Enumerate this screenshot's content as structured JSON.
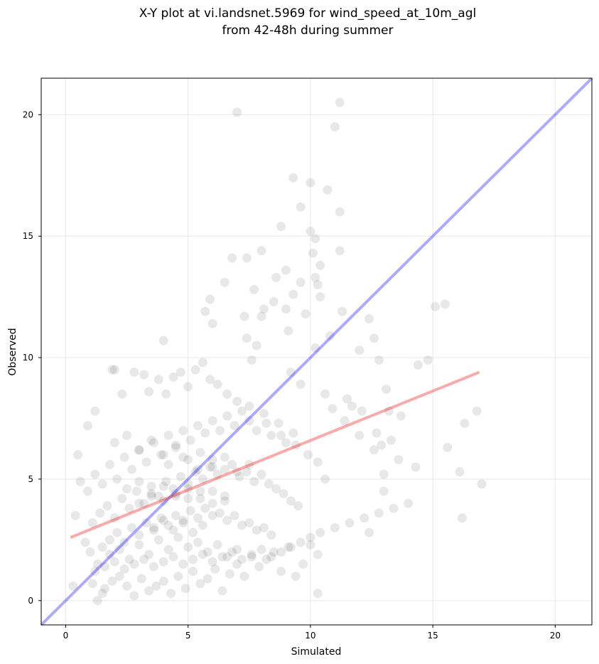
{
  "chart_data": {
    "type": "scatter",
    "title_lines": [
      "X-Y plot at vi.landsnet.5969 for wind_speed_at_10m_agl",
      "from 42-48h during summer"
    ],
    "xlabel": "Simulated",
    "ylabel": "Observed",
    "xlim": [
      -1,
      21.5
    ],
    "ylim": [
      -1,
      21.5
    ],
    "x_ticks": [
      "0",
      "5",
      "10",
      "15",
      "20"
    ],
    "y_ticks": [
      "0",
      "5",
      "10",
      "15",
      "20"
    ],
    "grid": true,
    "colors": {
      "points": "#000000",
      "identity_line": "#0000ff",
      "regression_line": "#ee0000"
    },
    "identity_line": {
      "x": [
        -1,
        21.5
      ],
      "y": [
        -1,
        21.5
      ]
    },
    "regression_line": {
      "x": [
        0.2,
        16.9
      ],
      "y": [
        2.6,
        9.4
      ]
    },
    "points": {
      "x": [
        7.0,
        11.2,
        11.0,
        9.6,
        10.0,
        10.7,
        9.3,
        11.2,
        8.8,
        10.0,
        11.2,
        10.1,
        10.2,
        8.0,
        7.4,
        6.8,
        10.4,
        9.0,
        10.3,
        9.6,
        10.4,
        7.7,
        8.5,
        15.5,
        15.1,
        12.4,
        9.1,
        9.8,
        10.2,
        11.3,
        10.8,
        12.0,
        12.6,
        4.0,
        12.8,
        14.8,
        14.4,
        1.9,
        16.8,
        16.3,
        15.6,
        16.1,
        16.2,
        17.0,
        14.3,
        12.4,
        13.0,
        10.3,
        13.2,
        13.7,
        13.6,
        12.7,
        11.5,
        12.1,
        13.1,
        12.9,
        8.0,
        9.3,
        9.0,
        6.5,
        5.9,
        5.7,
        6.0,
        7.3,
        7.4,
        7.8,
        8.6,
        10.2,
        8.1,
        7.6,
        9.6,
        9.2,
        10.6,
        10.9,
        11.4,
        11.7,
        12.0,
        12.6,
        13.0,
        13.3,
        0.3,
        0.4,
        0.8,
        1.1,
        1.3,
        1.5,
        0.5,
        0.9,
        1.2,
        2.0,
        2.3,
        2.8,
        3.2,
        3.4,
        3.8,
        4.1,
        4.4,
        4.7,
        5.0,
        5.3,
        5.6,
        5.9,
        6.2,
        6.6,
        7.0,
        7.5,
        8.2,
        8.8,
        9.4,
        9.9,
        10.3,
        10.6,
        1.0,
        1.3,
        1.6,
        1.9,
        2.2,
        2.5,
        2.8,
        3.1,
        3.4,
        3.7,
        4.0,
        4.3,
        4.6,
        4.9,
        5.2,
        5.5,
        5.8,
        6.1,
        6.4,
        6.7,
        7.0,
        7.3,
        7.6,
        7.9,
        8.2,
        8.5,
        8.8,
        9.1,
        9.4,
        9.7,
        10.0,
        10.3,
        0.6,
        0.9,
        1.2,
        1.5,
        1.8,
        2.1,
        2.4,
        2.7,
        3.0,
        3.3,
        3.6,
        3.9,
        4.2,
        4.5,
        4.8,
        5.1,
        5.4,
        5.7,
        6.0,
        6.3,
        6.6,
        6.9,
        7.2,
        7.5,
        7.8,
        8.1,
        8.4,
        8.7,
        9.0,
        9.3,
        1.1,
        1.4,
        1.7,
        2.0,
        2.3,
        2.6,
        2.9,
        3.2,
        3.5,
        3.8,
        4.1,
        4.4,
        4.7,
        5.0,
        5.3,
        5.6,
        5.9,
        6.2,
        6.5,
        6.8,
        7.1,
        7.4,
        7.7,
        8.0,
        8.3,
        8.6,
        8.9,
        9.2,
        9.5,
        1.5,
        1.8,
        2.1,
        2.4,
        2.7,
        3.0,
        3.3,
        3.6,
        3.9,
        4.2,
        4.5,
        4.8,
        5.1,
        5.4,
        5.7,
        6.0,
        6.3,
        6.6,
        6.9,
        7.2,
        7.5,
        7.8,
        8.1,
        8.4,
        2.0,
        2.5,
        3.0,
        3.5,
        4.0,
        4.5,
        5.0,
        5.5,
        6.0,
        6.5,
        7.0,
        7.5,
        1.8,
        2.2,
        2.6,
        3.0,
        3.4,
        3.8,
        4.2,
        4.6,
        5.0,
        5.4,
        5.8,
        6.2,
        6.6,
        7.0,
        3.0,
        3.5,
        4.0,
        4.5,
        5.0,
        5.5,
        6.0,
        6.5,
        4.2,
        4.8,
        5.4,
        6.0,
        3.6,
        4.0,
        4.4,
        4.8,
        5.2,
        5.6,
        2.5,
        3.0,
        3.5,
        4.0,
        4.5,
        5.0,
        5.5,
        6.0,
        6.5,
        1.2,
        1.6,
        2.0,
        2.4,
        2.8,
        3.2,
        3.6,
        4.0,
        4.4,
        4.8,
        5.2,
        5.6,
        6.0,
        6.4,
        6.8,
        7.2,
        7.6,
        8.0,
        8.4,
        8.8,
        9.2,
        9.6,
        10.0,
        10.4,
        11.0,
        11.6,
        12.2,
        12.8,
        13.4,
        14.0
      ],
      "y": [
        20.1,
        20.5,
        19.5,
        16.2,
        17.2,
        16.9,
        17.4,
        16.0,
        15.4,
        15.2,
        14.4,
        14.3,
        14.9,
        14.4,
        14.1,
        14.1,
        13.8,
        13.6,
        13.0,
        13.1,
        12.5,
        12.8,
        12.3,
        12.2,
        12.1,
        11.6,
        11.1,
        11.8,
        10.4,
        11.9,
        10.9,
        10.3,
        10.8,
        10.7,
        9.9,
        9.9,
        9.7,
        9.5,
        7.8,
        7.3,
        6.3,
        5.3,
        3.4,
        4.8,
        5.5,
        2.8,
        4.5,
        0.3,
        7.8,
        7.6,
        5.8,
        6.9,
        8.3,
        7.8,
        8.7,
        6.4,
        11.7,
        12.6,
        12.0,
        13.1,
        12.4,
        11.9,
        11.4,
        11.7,
        10.8,
        10.5,
        13.3,
        13.3,
        12.0,
        9.9,
        8.9,
        9.4,
        8.5,
        7.9,
        7.4,
        8.0,
        6.8,
        6.2,
        5.2,
        6.6,
        0.6,
        3.5,
        2.4,
        0.7,
        0.0,
        0.3,
        6.0,
        7.2,
        7.8,
        9.5,
        8.5,
        9.4,
        9.3,
        8.6,
        9.1,
        8.5,
        9.2,
        9.4,
        8.8,
        9.5,
        9.8,
        9.1,
        8.9,
        8.5,
        8.2,
        8.0,
        7.3,
        6.8,
        6.4,
        6.0,
        5.7,
        5.0,
        2.0,
        1.5,
        0.5,
        0.8,
        1.0,
        0.6,
        0.2,
        0.9,
        0.4,
        0.6,
        0.8,
        0.3,
        1.0,
        0.5,
        1.2,
        0.7,
        0.9,
        1.3,
        0.4,
        1.1,
        1.5,
        1.0,
        1.8,
        1.4,
        1.7,
        2.0,
        1.2,
        2.2,
        1.0,
        1.5,
        2.3,
        1.9,
        4.9,
        4.5,
        5.2,
        4.8,
        5.6,
        5.0,
        5.9,
        5.4,
        6.2,
        5.7,
        6.5,
        6.0,
        6.8,
        6.3,
        7.0,
        6.6,
        7.2,
        6.9,
        7.4,
        7.0,
        7.6,
        7.2,
        7.8,
        7.4,
        7.0,
        7.7,
        6.8,
        7.3,
        6.5,
        6.9,
        3.2,
        3.6,
        3.9,
        3.4,
        4.2,
        3.8,
        4.5,
        4.0,
        4.7,
        4.3,
        4.9,
        4.6,
        5.1,
        4.8,
        5.3,
        5.0,
        5.5,
        5.2,
        5.4,
        5.6,
        5.1,
        5.3,
        4.9,
        5.2,
        4.8,
        4.6,
        4.4,
        4.1,
        3.9,
        2.2,
        2.5,
        2.8,
        2.4,
        3.0,
        2.7,
        3.2,
        2.9,
        3.4,
        3.1,
        3.5,
        3.3,
        3.7,
        3.4,
        3.8,
        3.5,
        3.6,
        3.3,
        3.5,
        3.1,
        3.2,
        2.9,
        3.0,
        2.7,
        6.5,
        6.8,
        6.2,
        6.6,
        6.0,
        6.4,
        5.8,
        6.1,
        5.5,
        5.9,
        5.3,
        5.6,
        1.9,
        2.1,
        1.7,
        2.3,
        1.9,
        2.5,
        2.1,
        2.6,
        2.2,
        2.4,
        2.0,
        2.3,
        1.8,
        2.1,
        4.0,
        4.3,
        4.1,
        4.4,
        4.2,
        4.5,
        4.0,
        4.3,
        5.6,
        5.9,
        5.4,
        5.8,
        3.0,
        3.3,
        2.9,
        3.2,
        2.8,
        3.1,
        4.6,
        4.9,
        4.4,
        4.7,
        4.3,
        4.6,
        4.2,
        4.5,
        4.1,
        1.2,
        1.4,
        1.6,
        1.3,
        1.5,
        1.7,
        1.4,
        1.6,
        1.8,
        1.5,
        1.7,
        1.9,
        1.6,
        1.8,
        2.0,
        1.7,
        1.9,
        2.1,
        1.8,
        2.0,
        2.2,
        2.4,
        2.6,
        2.8,
        3.0,
        3.2,
        3.4,
        3.6,
        3.8,
        4.0
      ]
    }
  }
}
